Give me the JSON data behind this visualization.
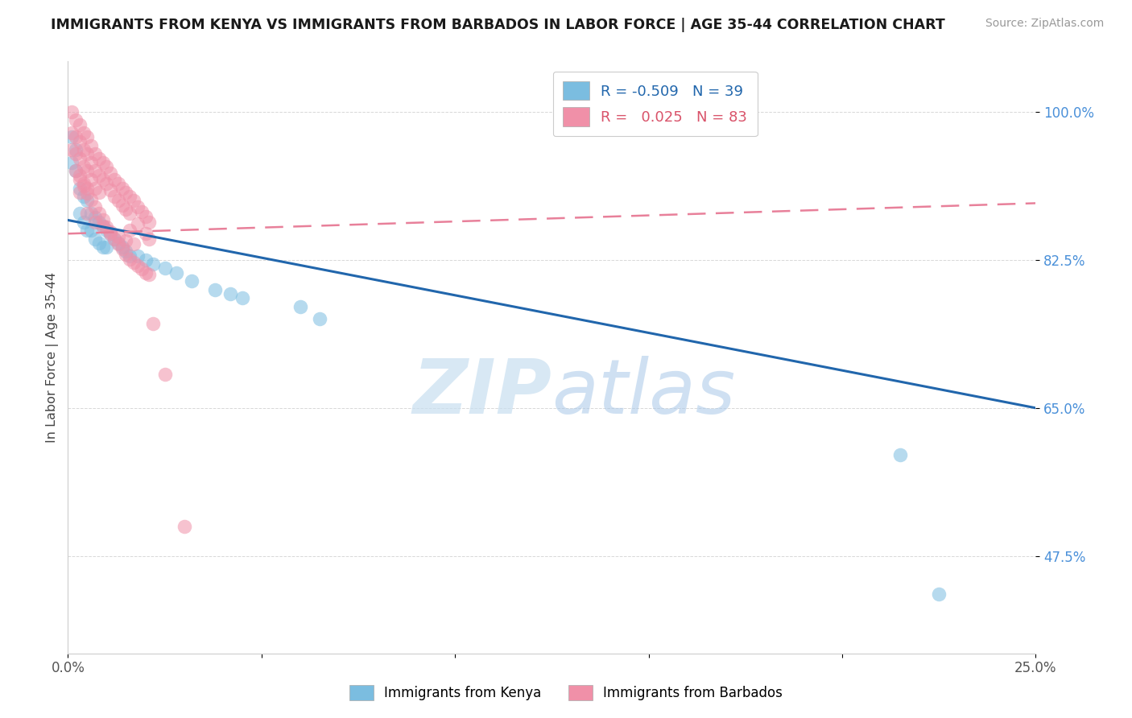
{
  "title": "IMMIGRANTS FROM KENYA VS IMMIGRANTS FROM BARBADOS IN LABOR FORCE | AGE 35-44 CORRELATION CHART",
  "source": "Source: ZipAtlas.com",
  "ylabel": "In Labor Force | Age 35-44",
  "xlim": [
    0.0,
    0.25
  ],
  "ylim": [
    0.36,
    1.06
  ],
  "ytick_vals": [
    0.475,
    0.65,
    0.825,
    1.0
  ],
  "ytick_labels": [
    "47.5%",
    "65.0%",
    "82.5%",
    "100.0%"
  ],
  "xtick_vals": [
    0.0,
    0.05,
    0.1,
    0.15,
    0.2,
    0.25
  ],
  "xtick_labels": [
    "0.0%",
    "",
    "",
    "",
    "",
    "25.0%"
  ],
  "kenya_color": "#7bbde0",
  "barbados_color": "#f090a8",
  "kenya_line_color": "#2166ac",
  "barbados_line_color": "#e8809a",
  "kenya_R": "-0.509",
  "kenya_N": "39",
  "barbados_R": "0.025",
  "barbados_N": "83",
  "kenya_line_x0": 0.0,
  "kenya_line_y0": 0.872,
  "kenya_line_x1": 0.25,
  "kenya_line_y1": 0.65,
  "barbados_line_x0": 0.0,
  "barbados_line_y0": 0.856,
  "barbados_line_x1": 0.25,
  "barbados_line_y1": 0.892,
  "kenya_scatter_x": [
    0.001,
    0.001,
    0.002,
    0.002,
    0.003,
    0.003,
    0.004,
    0.004,
    0.005,
    0.005,
    0.006,
    0.006,
    0.007,
    0.007,
    0.008,
    0.008,
    0.009,
    0.009,
    0.01,
    0.01,
    0.011,
    0.012,
    0.013,
    0.014,
    0.015,
    0.016,
    0.018,
    0.02,
    0.022,
    0.025,
    0.028,
    0.032,
    0.038,
    0.042,
    0.045,
    0.06,
    0.065,
    0.215,
    0.225
  ],
  "kenya_scatter_y": [
    0.94,
    0.97,
    0.955,
    0.93,
    0.91,
    0.88,
    0.9,
    0.87,
    0.895,
    0.86,
    0.88,
    0.86,
    0.875,
    0.85,
    0.87,
    0.845,
    0.865,
    0.84,
    0.86,
    0.84,
    0.855,
    0.85,
    0.845,
    0.84,
    0.835,
    0.83,
    0.83,
    0.825,
    0.82,
    0.815,
    0.81,
    0.8,
    0.79,
    0.785,
    0.78,
    0.77,
    0.755,
    0.595,
    0.43
  ],
  "barbados_scatter_x": [
    0.001,
    0.001,
    0.001,
    0.002,
    0.002,
    0.002,
    0.002,
    0.003,
    0.003,
    0.003,
    0.003,
    0.003,
    0.004,
    0.004,
    0.004,
    0.004,
    0.005,
    0.005,
    0.005,
    0.005,
    0.006,
    0.006,
    0.006,
    0.007,
    0.007,
    0.007,
    0.008,
    0.008,
    0.008,
    0.009,
    0.009,
    0.01,
    0.01,
    0.011,
    0.011,
    0.012,
    0.012,
    0.013,
    0.013,
    0.014,
    0.014,
    0.015,
    0.015,
    0.016,
    0.016,
    0.016,
    0.017,
    0.018,
    0.018,
    0.019,
    0.02,
    0.02,
    0.021,
    0.021,
    0.005,
    0.007,
    0.009,
    0.011,
    0.013,
    0.015,
    0.017,
    0.003,
    0.004,
    0.005,
    0.006,
    0.007,
    0.008,
    0.009,
    0.01,
    0.011,
    0.012,
    0.013,
    0.014,
    0.015,
    0.016,
    0.017,
    0.018,
    0.019,
    0.02,
    0.021,
    0.022,
    0.025,
    0.03
  ],
  "barbados_scatter_y": [
    1.0,
    0.975,
    0.955,
    0.99,
    0.97,
    0.95,
    0.93,
    0.985,
    0.965,
    0.945,
    0.925,
    0.905,
    0.975,
    0.955,
    0.935,
    0.915,
    0.97,
    0.95,
    0.93,
    0.91,
    0.96,
    0.94,
    0.92,
    0.95,
    0.93,
    0.91,
    0.945,
    0.925,
    0.905,
    0.94,
    0.92,
    0.935,
    0.915,
    0.928,
    0.908,
    0.92,
    0.9,
    0.915,
    0.895,
    0.91,
    0.89,
    0.905,
    0.885,
    0.9,
    0.88,
    0.86,
    0.895,
    0.888,
    0.868,
    0.882,
    0.876,
    0.856,
    0.87,
    0.85,
    0.88,
    0.87,
    0.865,
    0.858,
    0.852,
    0.848,
    0.844,
    0.92,
    0.912,
    0.904,
    0.896,
    0.888,
    0.88,
    0.872,
    0.864,
    0.856,
    0.85,
    0.844,
    0.838,
    0.832,
    0.826,
    0.822,
    0.818,
    0.814,
    0.81,
    0.808,
    0.75,
    0.69,
    0.51
  ],
  "watermark_zip": "ZIP",
  "watermark_atlas": "atlas",
  "background_color": "#ffffff",
  "grid_color": "#d8d8d8"
}
